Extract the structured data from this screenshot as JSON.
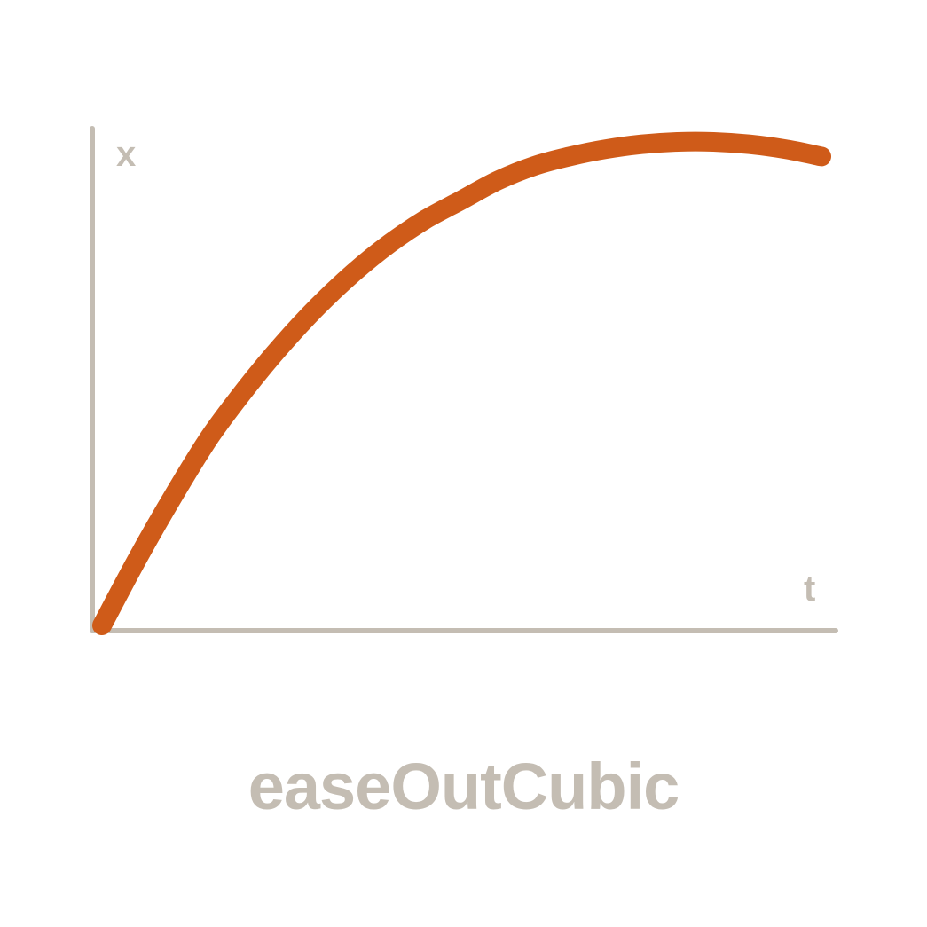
{
  "chart_data": {
    "type": "line",
    "title": "easeOutCubic",
    "xlabel": "t",
    "ylabel": "x",
    "xlim": [
      0,
      1
    ],
    "ylim": [
      0,
      1
    ],
    "grid": false,
    "series": [
      {
        "x": [
          0,
          0.05,
          0.1,
          0.15,
          0.2,
          0.25,
          0.3,
          0.35,
          0.4,
          0.45,
          0.5,
          0.55,
          0.6,
          0.65,
          0.7,
          0.75,
          0.8,
          0.85,
          0.9,
          0.95,
          1.0
        ],
        "y": [
          0,
          0.14,
          0.27,
          0.39,
          0.49,
          0.58,
          0.66,
          0.73,
          0.79,
          0.84,
          0.88,
          0.92,
          0.95,
          0.97,
          0.985,
          0.995,
          1.0,
          1.0,
          0.995,
          0.985,
          0.97
        ]
      }
    ]
  },
  "colors": {
    "curve": "#cf5b19",
    "axis": "#c4bdb3",
    "text": "#c4bdb3"
  }
}
